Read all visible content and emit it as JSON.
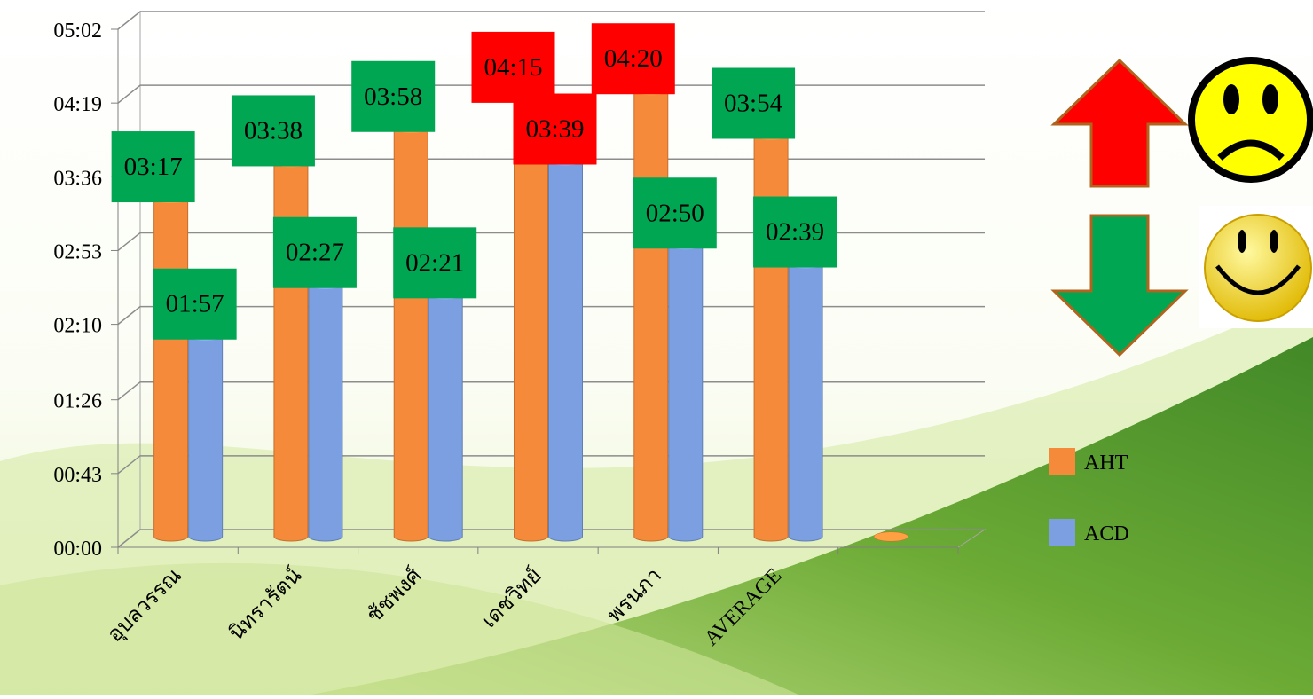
{
  "chart_data": {
    "type": "bar3d",
    "categories": [
      "อุบลวรรณ",
      "นิทรารัตน์",
      "ชัชพงศ์",
      "เดชวิทย์",
      "พรนภา",
      "AVERAGE",
      null
    ],
    "series": [
      {
        "name": "AHT",
        "color": "#f58b3a",
        "values": [
          197,
          218,
          238,
          255,
          260,
          234,
          0
        ],
        "value_labels": [
          "03:17",
          "03:38",
          "03:58",
          "04:15",
          "04:20",
          "03:54",
          null
        ],
        "label_colors": [
          "#00a651",
          "#00a651",
          "#00a651",
          "#ff0000",
          "#ff0000",
          "#00a651",
          null
        ]
      },
      {
        "name": "ACD",
        "color": "#7b9fe0",
        "values": [
          117,
          147,
          141,
          219,
          170,
          159,
          null
        ],
        "value_labels": [
          "01:57",
          "02:27",
          "02:21",
          "03:39",
          "02:50",
          "02:39",
          null
        ],
        "label_colors": [
          "#00a651",
          "#00a651",
          "#00a651",
          "#ff0000",
          "#00a651",
          "#00a651",
          null
        ]
      }
    ],
    "ylim": [
      0,
      302
    ],
    "yticks": [
      {
        "value": 0,
        "label": "00:00"
      },
      {
        "value": 43,
        "label": "00:43"
      },
      {
        "value": 86,
        "label": "01:26"
      },
      {
        "value": 130,
        "label": "02:10"
      },
      {
        "value": 173,
        "label": "02:53"
      },
      {
        "value": 216,
        "label": "03:36"
      },
      {
        "value": 259,
        "label": "04:19"
      },
      {
        "value": 302,
        "label": "05:02"
      }
    ],
    "grid": true,
    "legend": "right"
  }
}
